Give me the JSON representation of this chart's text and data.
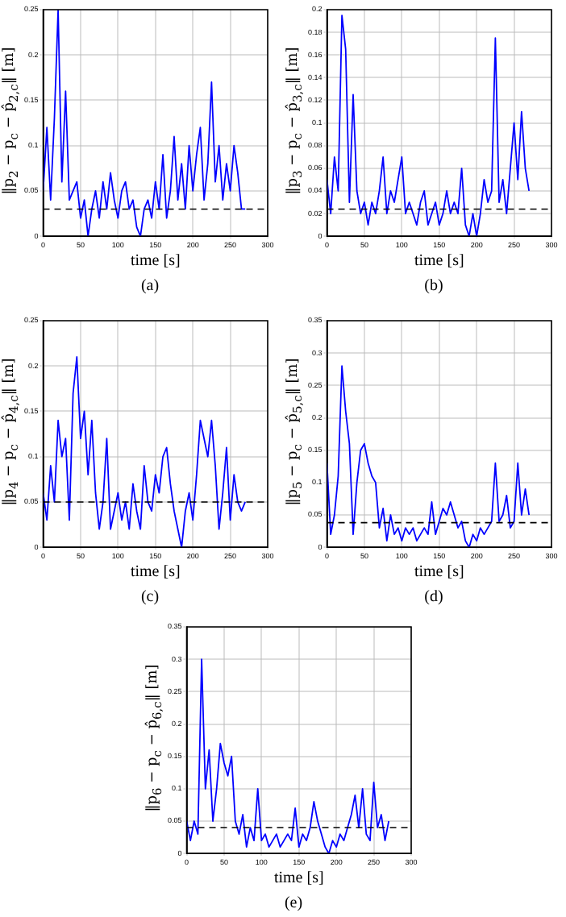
{
  "chart_data": [
    {
      "type": "line",
      "xlabel": "time [s]",
      "ylabel": "‖p$_{2}$ − p$_{c}$ − p̂$_{2,c}$‖ [m]",
      "annotations": [
        "(a)"
      ],
      "grid": true,
      "xlim": [
        0,
        300
      ],
      "xticks": [
        0,
        50,
        100,
        150,
        200,
        250,
        300
      ],
      "ylim": [
        0,
        0.25
      ],
      "yticks": [
        0,
        0.05,
        0.1,
        0.15,
        0.2,
        0.25
      ],
      "x": [
        0,
        5,
        10,
        15,
        20,
        25,
        30,
        35,
        40,
        45,
        50,
        55,
        60,
        65,
        70,
        75,
        80,
        85,
        90,
        95,
        100,
        105,
        110,
        115,
        120,
        125,
        130,
        135,
        140,
        145,
        150,
        155,
        160,
        165,
        170,
        175,
        180,
        185,
        190,
        195,
        200,
        205,
        210,
        215,
        220,
        225,
        230,
        235,
        240,
        245,
        250,
        255,
        260,
        265,
        270
      ],
      "series": [
        {
          "color": "#0000ff",
          "values": [
            0.05,
            0.12,
            0.04,
            0.13,
            0.25,
            0.06,
            0.16,
            0.04,
            0.05,
            0.06,
            0.02,
            0.04,
            0.0,
            0.03,
            0.05,
            0.02,
            0.06,
            0.03,
            0.07,
            0.04,
            0.02,
            0.05,
            0.06,
            0.03,
            0.04,
            0.01,
            0.0,
            0.03,
            0.04,
            0.02,
            0.06,
            0.03,
            0.09,
            0.02,
            0.05,
            0.11,
            0.04,
            0.08,
            0.03,
            0.1,
            0.05,
            0.09,
            0.12,
            0.04,
            0.08,
            0.17,
            0.06,
            0.1,
            0.04,
            0.08,
            0.05,
            0.1,
            0.07,
            0.03,
            0.03
          ]
        }
      ],
      "ref_lines": [
        {
          "axis": "y",
          "value": 0.03,
          "color": "#000000",
          "line_style": "dashed"
        }
      ]
    },
    {
      "type": "line",
      "xlabel": "time [s]",
      "ylabel": "‖p$_{3}$ − p$_{c}$ − p̂$_{3,c}$‖ [m]",
      "annotations": [
        "(b)"
      ],
      "grid": true,
      "xlim": [
        0,
        300
      ],
      "xticks": [
        0,
        50,
        100,
        150,
        200,
        250,
        300
      ],
      "ylim": [
        0,
        0.2
      ],
      "yticks": [
        0,
        0.02,
        0.04,
        0.06,
        0.08,
        0.1,
        0.12,
        0.14,
        0.16,
        0.18,
        0.2
      ],
      "x": [
        0,
        5,
        10,
        15,
        20,
        25,
        30,
        35,
        40,
        45,
        50,
        55,
        60,
        65,
        70,
        75,
        80,
        85,
        90,
        95,
        100,
        105,
        110,
        115,
        120,
        125,
        130,
        135,
        140,
        145,
        150,
        155,
        160,
        165,
        170,
        175,
        180,
        185,
        190,
        195,
        200,
        205,
        210,
        215,
        220,
        225,
        230,
        235,
        240,
        245,
        250,
        255,
        260,
        265,
        270
      ],
      "series": [
        {
          "color": "#0000ff",
          "values": [
            0.05,
            0.02,
            0.07,
            0.04,
            0.195,
            0.165,
            0.03,
            0.125,
            0.04,
            0.02,
            0.03,
            0.01,
            0.03,
            0.02,
            0.04,
            0.07,
            0.02,
            0.04,
            0.03,
            0.05,
            0.07,
            0.02,
            0.03,
            0.02,
            0.01,
            0.03,
            0.04,
            0.01,
            0.02,
            0.03,
            0.01,
            0.02,
            0.04,
            0.02,
            0.03,
            0.02,
            0.06,
            0.01,
            0.0,
            0.02,
            0.0,
            0.02,
            0.05,
            0.03,
            0.04,
            0.175,
            0.03,
            0.05,
            0.02,
            0.06,
            0.1,
            0.05,
            0.11,
            0.06,
            0.04
          ]
        }
      ],
      "ref_lines": [
        {
          "axis": "y",
          "value": 0.024,
          "color": "#000000",
          "line_style": "dashed"
        }
      ]
    },
    {
      "type": "line",
      "xlabel": "time [s]",
      "ylabel": "‖p$_{4}$ − p$_{c}$ − p̂$_{4,c}$‖ [m]",
      "annotations": [
        "(c)"
      ],
      "grid": true,
      "xlim": [
        0,
        300
      ],
      "xticks": [
        0,
        50,
        100,
        150,
        200,
        250,
        300
      ],
      "ylim": [
        0,
        0.25
      ],
      "yticks": [
        0,
        0.05,
        0.1,
        0.15,
        0.2,
        0.25
      ],
      "x": [
        0,
        5,
        10,
        15,
        20,
        25,
        30,
        35,
        40,
        45,
        50,
        55,
        60,
        65,
        70,
        75,
        80,
        85,
        90,
        95,
        100,
        105,
        110,
        115,
        120,
        125,
        130,
        135,
        140,
        145,
        150,
        155,
        160,
        165,
        170,
        175,
        180,
        185,
        190,
        195,
        200,
        205,
        210,
        215,
        220,
        225,
        230,
        235,
        240,
        245,
        250,
        255,
        260,
        265,
        270
      ],
      "series": [
        {
          "color": "#0000ff",
          "values": [
            0.06,
            0.03,
            0.09,
            0.05,
            0.14,
            0.1,
            0.12,
            0.03,
            0.17,
            0.21,
            0.12,
            0.15,
            0.08,
            0.14,
            0.06,
            0.02,
            0.05,
            0.12,
            0.02,
            0.04,
            0.06,
            0.03,
            0.05,
            0.02,
            0.07,
            0.04,
            0.02,
            0.09,
            0.05,
            0.04,
            0.08,
            0.06,
            0.1,
            0.11,
            0.07,
            0.04,
            0.02,
            0.0,
            0.04,
            0.06,
            0.03,
            0.08,
            0.14,
            0.12,
            0.1,
            0.14,
            0.09,
            0.02,
            0.06,
            0.11,
            0.03,
            0.08,
            0.05,
            0.04,
            0.05
          ]
        }
      ],
      "ref_lines": [
        {
          "axis": "y",
          "value": 0.05,
          "color": "#000000",
          "line_style": "dashed"
        }
      ]
    },
    {
      "type": "line",
      "xlabel": "time [s]",
      "ylabel": "‖p$_{5}$ − p$_{c}$ − p̂$_{5,c}$‖ [m]",
      "annotations": [
        "(d)"
      ],
      "grid": true,
      "xlim": [
        0,
        300
      ],
      "xticks": [
        0,
        50,
        100,
        150,
        200,
        250,
        300
      ],
      "ylim": [
        0,
        0.35
      ],
      "yticks": [
        0,
        0.05,
        0.1,
        0.15,
        0.2,
        0.25,
        0.3,
        0.35
      ],
      "x": [
        0,
        5,
        10,
        15,
        20,
        25,
        30,
        35,
        40,
        45,
        50,
        55,
        60,
        65,
        70,
        75,
        80,
        85,
        90,
        95,
        100,
        105,
        110,
        115,
        120,
        125,
        130,
        135,
        140,
        145,
        150,
        155,
        160,
        165,
        170,
        175,
        180,
        185,
        190,
        195,
        200,
        205,
        210,
        215,
        220,
        225,
        230,
        235,
        240,
        245,
        250,
        255,
        260,
        265,
        270
      ],
      "series": [
        {
          "color": "#0000ff",
          "values": [
            0.13,
            0.02,
            0.05,
            0.11,
            0.28,
            0.21,
            0.16,
            0.02,
            0.1,
            0.15,
            0.16,
            0.13,
            0.11,
            0.1,
            0.03,
            0.06,
            0.01,
            0.05,
            0.02,
            0.03,
            0.01,
            0.03,
            0.02,
            0.03,
            0.01,
            0.02,
            0.03,
            0.02,
            0.07,
            0.02,
            0.04,
            0.06,
            0.05,
            0.07,
            0.05,
            0.03,
            0.04,
            0.01,
            0.0,
            0.02,
            0.01,
            0.03,
            0.02,
            0.03,
            0.04,
            0.13,
            0.04,
            0.05,
            0.08,
            0.03,
            0.04,
            0.13,
            0.05,
            0.09,
            0.05
          ]
        }
      ],
      "ref_lines": [
        {
          "axis": "y",
          "value": 0.038,
          "color": "#000000",
          "line_style": "dashed"
        }
      ]
    },
    {
      "type": "line",
      "xlabel": "time [s]",
      "ylabel": "‖p$_{6}$ − p$_{c}$ − p̂$_{6,c}$‖ [m]",
      "annotations": [
        "(e)"
      ],
      "grid": true,
      "xlim": [
        0,
        300
      ],
      "xticks": [
        0,
        50,
        100,
        150,
        200,
        250,
        300
      ],
      "ylim": [
        0,
        0.35
      ],
      "yticks": [
        0,
        0.05,
        0.1,
        0.15,
        0.2,
        0.25,
        0.3,
        0.35
      ],
      "x": [
        0,
        5,
        10,
        15,
        20,
        25,
        30,
        35,
        40,
        45,
        50,
        55,
        60,
        65,
        70,
        75,
        80,
        85,
        90,
        95,
        100,
        105,
        110,
        115,
        120,
        125,
        130,
        135,
        140,
        145,
        150,
        155,
        160,
        165,
        170,
        175,
        180,
        185,
        190,
        195,
        200,
        205,
        210,
        215,
        220,
        225,
        230,
        235,
        240,
        245,
        250,
        255,
        260,
        265,
        270
      ],
      "series": [
        {
          "color": "#0000ff",
          "values": [
            0.05,
            0.02,
            0.05,
            0.03,
            0.3,
            0.1,
            0.16,
            0.05,
            0.1,
            0.17,
            0.14,
            0.12,
            0.15,
            0.05,
            0.03,
            0.06,
            0.01,
            0.04,
            0.02,
            0.1,
            0.02,
            0.03,
            0.01,
            0.02,
            0.03,
            0.01,
            0.02,
            0.03,
            0.02,
            0.07,
            0.01,
            0.03,
            0.02,
            0.04,
            0.08,
            0.05,
            0.03,
            0.01,
            0.0,
            0.02,
            0.01,
            0.03,
            0.02,
            0.04,
            0.06,
            0.09,
            0.04,
            0.1,
            0.03,
            0.02,
            0.11,
            0.04,
            0.06,
            0.02,
            0.05
          ]
        }
      ],
      "ref_lines": [
        {
          "axis": "y",
          "value": 0.04,
          "color": "#000000",
          "line_style": "dashed"
        }
      ]
    }
  ]
}
